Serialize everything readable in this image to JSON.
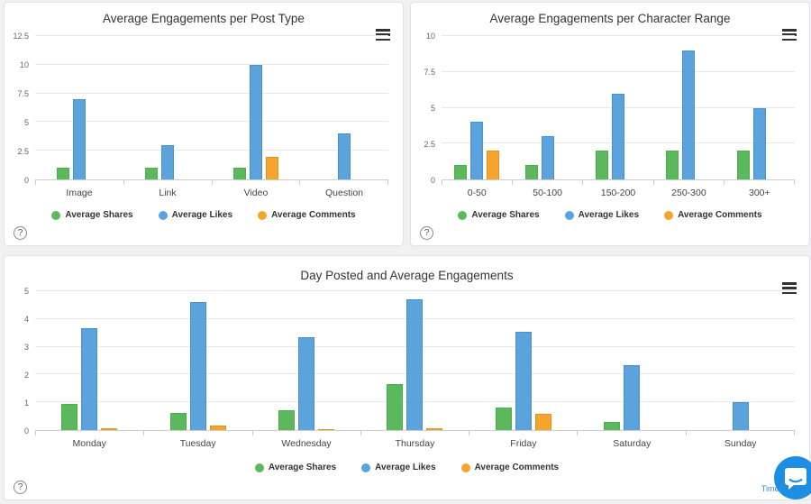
{
  "icons": {
    "help_glyph": "?"
  },
  "footer": {
    "time_note": "Time in"
  },
  "chat": {
    "launcher_color": "#1e8ee3",
    "bubble_color": "#ffffff"
  },
  "colors": {
    "shares_green": "#5cb85c",
    "likes_blue": "#5ba3dc",
    "comments_orange": "#f6a42d",
    "link_blue": "#3a87c8"
  },
  "chart_data": [
    {
      "type": "bar",
      "title": "Average Engagements per Post Type",
      "categories": [
        "Image",
        "Link",
        "Video",
        "Question"
      ],
      "yticks": [
        0,
        2.5,
        5,
        7.5,
        10,
        12.5
      ],
      "ylim": [
        0,
        12.5
      ],
      "xlabel": "",
      "ylabel": "",
      "grid": true,
      "legend_position": "bottom",
      "series": [
        {
          "name": "Average Shares",
          "color": "#5cb85c",
          "border": "#4cae4c",
          "values": [
            1,
            1,
            1,
            0
          ]
        },
        {
          "name": "Average Likes",
          "color": "#5ba3dc",
          "border": "#4a90ca",
          "values": [
            7,
            3,
            10,
            4
          ]
        },
        {
          "name": "Average Comments",
          "color": "#f6a42d",
          "border": "#e0921f",
          "values": [
            0,
            0,
            2,
            0
          ]
        }
      ]
    },
    {
      "type": "bar",
      "title": "Average Engagements per Character Range",
      "categories": [
        "0-50",
        "50-100",
        "150-200",
        "250-300",
        "300+"
      ],
      "yticks": [
        0,
        2.5,
        5,
        7.5,
        10
      ],
      "ylim": [
        0,
        10
      ],
      "xlabel": "",
      "ylabel": "",
      "grid": true,
      "legend_position": "bottom",
      "series": [
        {
          "name": "Average Shares",
          "color": "#5cb85c",
          "border": "#4cae4c",
          "values": [
            1,
            1,
            2,
            2,
            2
          ]
        },
        {
          "name": "Average Likes",
          "color": "#5ba3dc",
          "border": "#4a90ca",
          "values": [
            4,
            3,
            6,
            9,
            5
          ]
        },
        {
          "name": "Average Comments",
          "color": "#f6a42d",
          "border": "#e0921f",
          "values": [
            2,
            0,
            0,
            0,
            0
          ]
        }
      ]
    },
    {
      "type": "bar",
      "title": "Day Posted and Average Engagements",
      "categories": [
        "Monday",
        "Tuesday",
        "Wednesday",
        "Thursday",
        "Friday",
        "Saturday",
        "Sunday"
      ],
      "yticks": [
        0,
        1,
        2,
        3,
        4,
        5
      ],
      "ylim": [
        0,
        5
      ],
      "xlabel": "",
      "ylabel": "",
      "grid": true,
      "legend_position": "bottom",
      "series": [
        {
          "name": "Average Shares",
          "color": "#5cb85c",
          "border": "#4cae4c",
          "values": [
            0.93,
            0.62,
            0.73,
            1.67,
            0.8,
            0.3,
            0
          ]
        },
        {
          "name": "Average Likes",
          "color": "#5ba3dc",
          "border": "#4a90ca",
          "values": [
            3.67,
            4.6,
            3.35,
            4.72,
            3.55,
            2.33,
            1
          ]
        },
        {
          "name": "Average Comments",
          "color": "#f6a42d",
          "border": "#e0921f",
          "values": [
            0.05,
            0.15,
            0.03,
            0.08,
            0.6,
            0,
            0
          ]
        }
      ]
    }
  ]
}
